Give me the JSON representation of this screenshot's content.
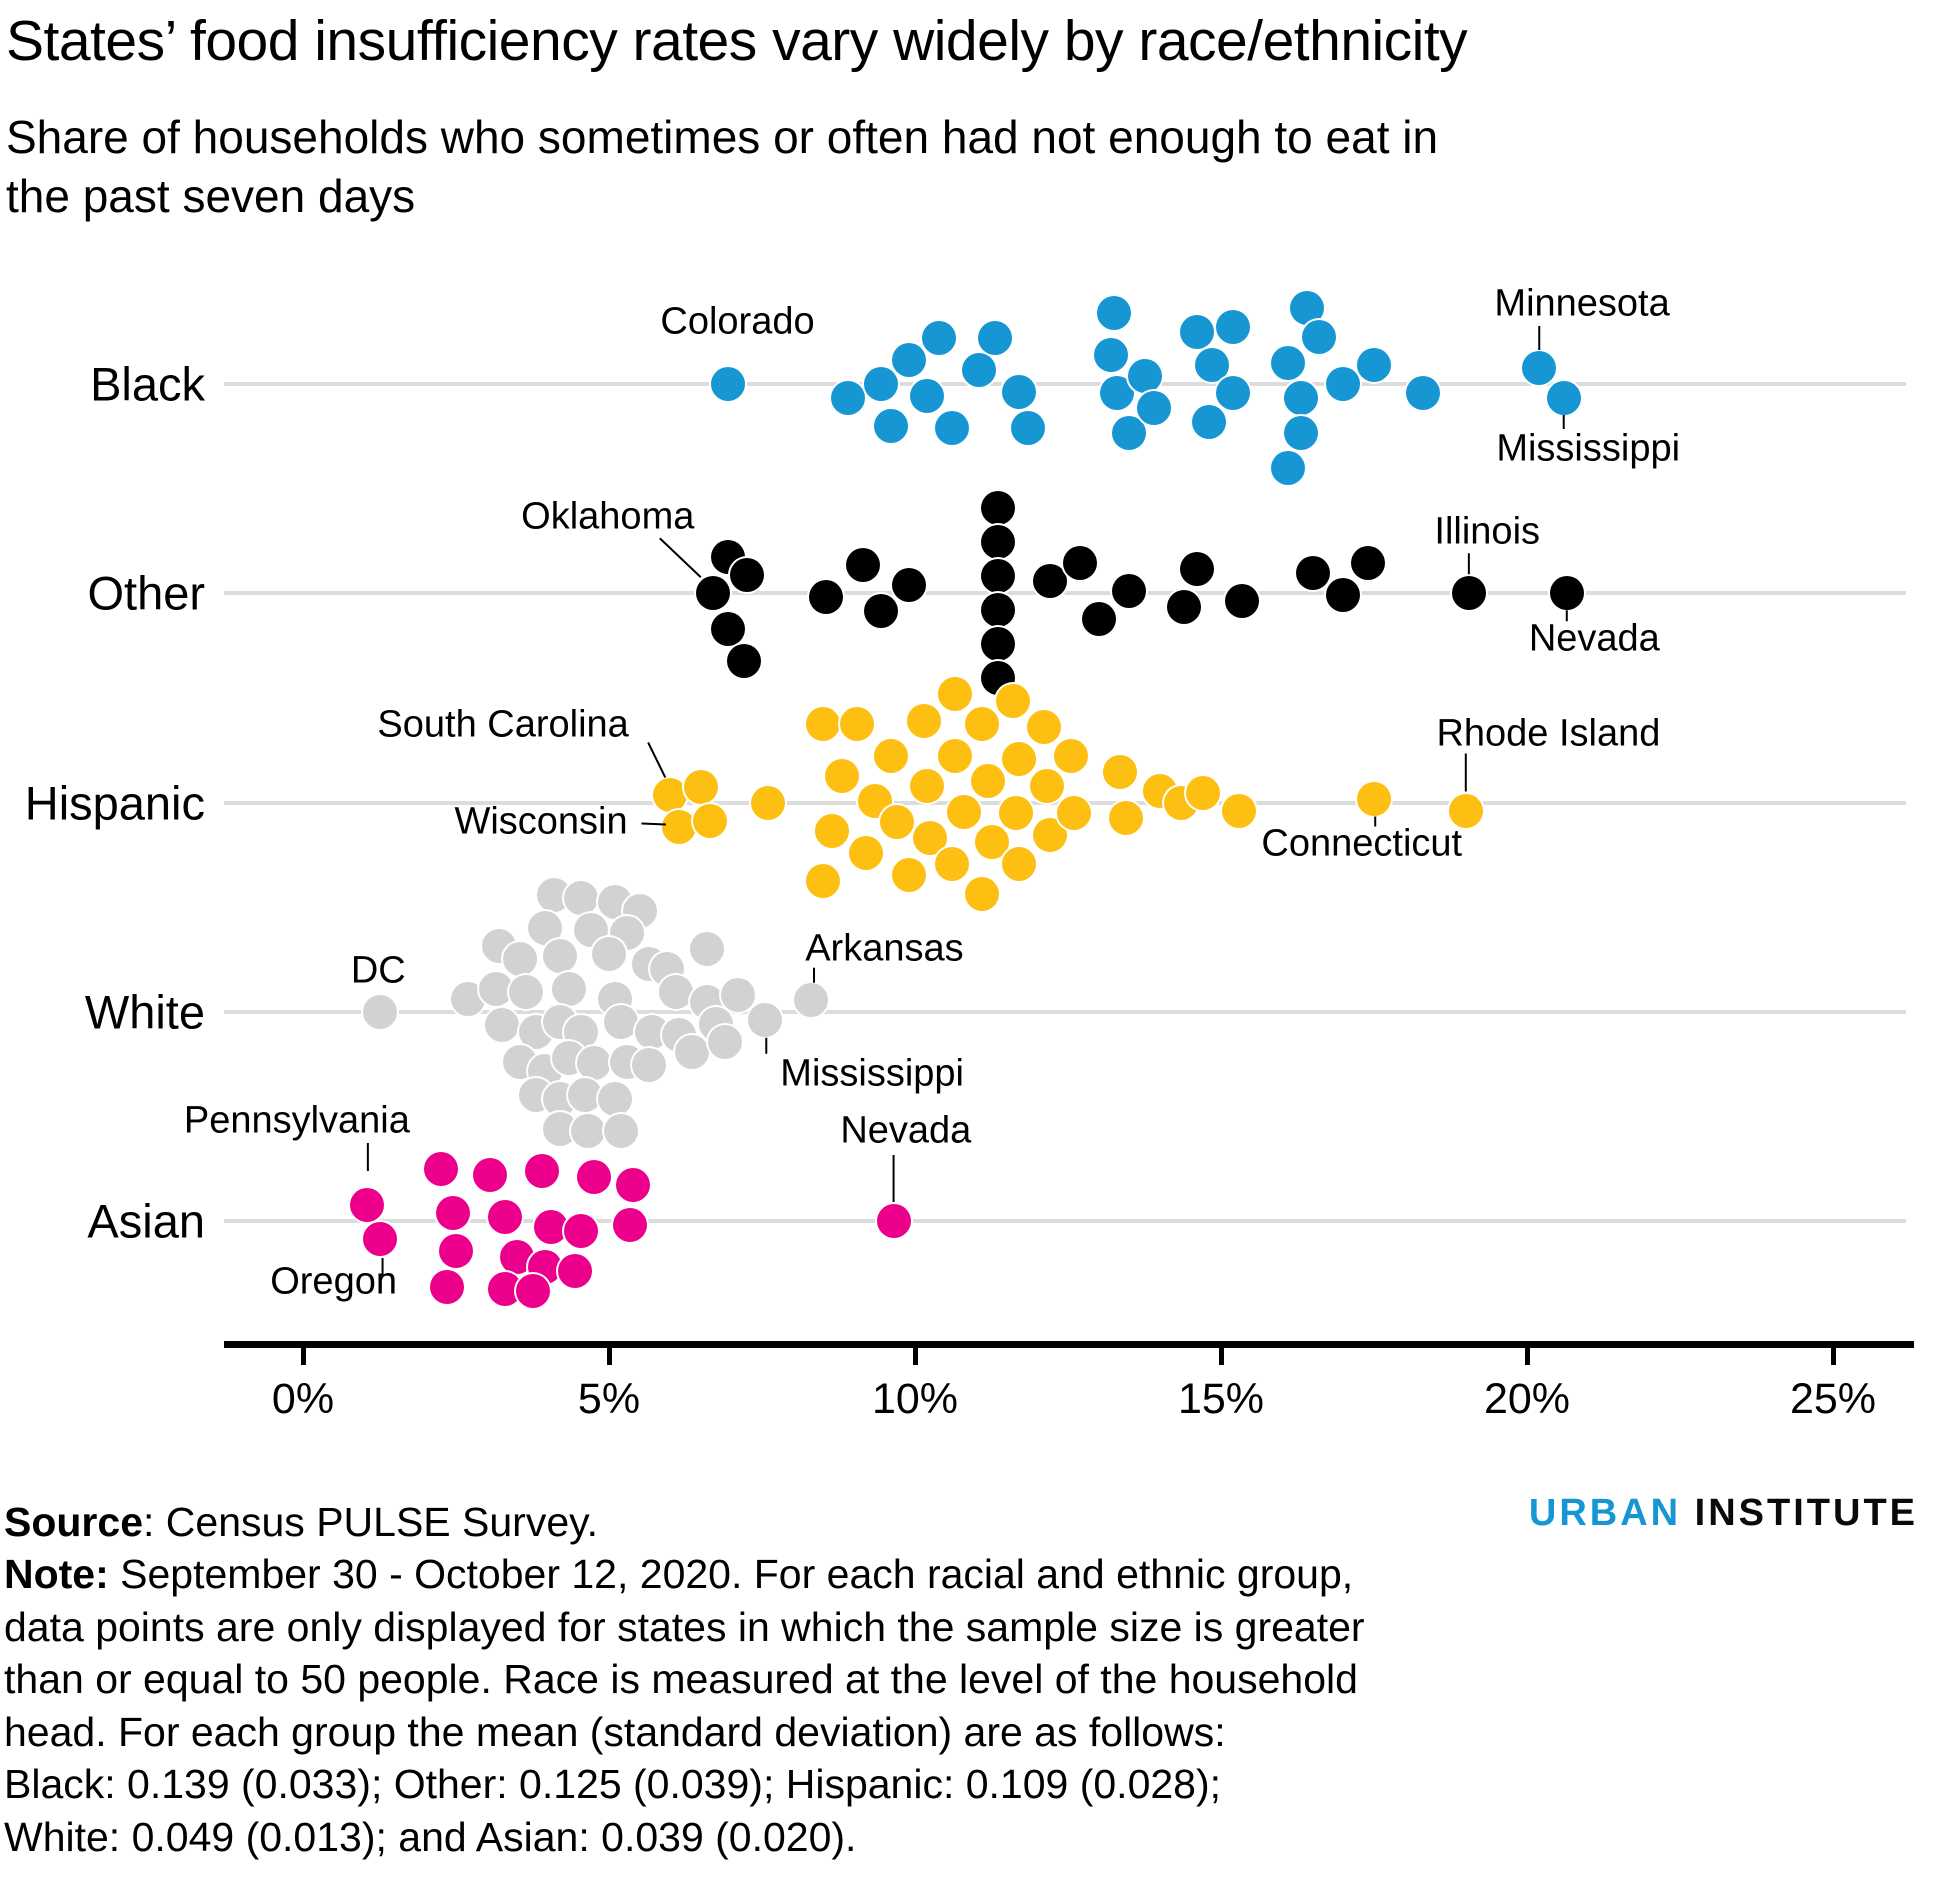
{
  "title": "States’ food insufficiency rates vary widely by race/ethnicity",
  "subtitle": "Share of households who sometimes or often had not enough to eat in the past seven days",
  "axis": {
    "tick_labels": [
      "0%",
      "5%",
      "10%",
      "15%",
      "20%",
      "25%"
    ],
    "tick_values": [
      0,
      5,
      10,
      15,
      20,
      25
    ]
  },
  "chart_data": {
    "type": "scatter",
    "subtype": "beeswarm-strip",
    "x_unit": "percent of households",
    "xlim": [
      0,
      25
    ],
    "grid": "horizontal-row-lines",
    "categories": [
      "Black",
      "Other",
      "Hispanic",
      "White",
      "Asian"
    ],
    "groups": [
      {
        "label": "Black",
        "color": "#1696d2",
        "mean": 0.139,
        "sd": 0.033,
        "dots": [
          [
            6.95,
            0
          ],
          [
            8.9,
            14
          ],
          [
            9.45,
            0
          ],
          [
            9.6,
            42
          ],
          [
            9.9,
            -24
          ],
          [
            10.2,
            12
          ],
          [
            10.4,
            -46
          ],
          [
            10.6,
            44
          ],
          [
            11.05,
            -14
          ],
          [
            11.3,
            -46
          ],
          [
            11.7,
            8
          ],
          [
            11.85,
            44
          ],
          [
            13.2,
            -29
          ],
          [
            13.25,
            -71
          ],
          [
            13.3,
            9
          ],
          [
            13.5,
            49
          ],
          [
            13.75,
            -8
          ],
          [
            13.9,
            24
          ],
          [
            14.6,
            -52
          ],
          [
            14.8,
            38
          ],
          [
            14.85,
            -19
          ],
          [
            15.2,
            -57
          ],
          [
            15.2,
            9
          ],
          [
            16.1,
            -21
          ],
          [
            16.1,
            84
          ],
          [
            16.3,
            14
          ],
          [
            16.3,
            49
          ],
          [
            16.4,
            -76
          ],
          [
            16.6,
            -47
          ],
          [
            17.0,
            0
          ],
          [
            17.5,
            -19
          ],
          [
            18.3,
            9
          ],
          [
            20.2,
            -16
          ],
          [
            20.6,
            14
          ]
        ],
        "annotations": [
          {
            "text": "Colorado",
            "x": 7.1,
            "dy": -62,
            "pointer": null
          },
          {
            "text": "Minnesota",
            "x": 20.9,
            "dy": -80,
            "pointer": [
              20.2,
              -58,
              20.2,
              -34
            ]
          },
          {
            "text": "Mississippi",
            "x": 21.0,
            "dy": 65,
            "pointer": [
              20.6,
              31,
              20.6,
              45
            ]
          }
        ]
      },
      {
        "label": "Other",
        "color": "#000000",
        "mean": 0.125,
        "sd": 0.039,
        "dots": [
          [
            6.7,
            0
          ],
          [
            6.95,
            -36
          ],
          [
            7.25,
            -18
          ],
          [
            6.95,
            36
          ],
          [
            7.2,
            68
          ],
          [
            8.55,
            4
          ],
          [
            9.15,
            -28
          ],
          [
            9.45,
            18
          ],
          [
            9.9,
            -8
          ],
          [
            11.35,
            -85
          ],
          [
            11.35,
            -51
          ],
          [
            11.35,
            -17
          ],
          [
            11.35,
            17
          ],
          [
            11.35,
            51
          ],
          [
            11.35,
            85
          ],
          [
            12.2,
            -12
          ],
          [
            12.7,
            -30
          ],
          [
            13.0,
            26
          ],
          [
            13.5,
            -2
          ],
          [
            14.4,
            14
          ],
          [
            14.6,
            -24
          ],
          [
            15.35,
            8
          ],
          [
            16.5,
            -20
          ],
          [
            17.0,
            2
          ],
          [
            17.4,
            -30
          ],
          [
            19.05,
            0
          ],
          [
            20.65,
            0
          ]
        ],
        "annotations": [
          {
            "text": "Oklahoma",
            "x": 4.98,
            "dy": -76,
            "pointer": [
              5.83,
              -55,
              6.5,
              -16
            ]
          },
          {
            "text": "Illinois",
            "x": 19.35,
            "dy": -61,
            "pointer": [
              19.05,
              -40,
              19.05,
              -19
            ]
          },
          {
            "text": "Nevada",
            "x": 21.1,
            "dy": 46,
            "pointer": [
              20.65,
              17,
              20.65,
              28
            ]
          }
        ]
      },
      {
        "label": "Hispanic",
        "color": "#fdbf11",
        "mean": 0.109,
        "sd": 0.028,
        "dots": [
          [
            6.0,
            -8
          ],
          [
            6.5,
            -16
          ],
          [
            6.15,
            24
          ],
          [
            6.65,
            18
          ],
          [
            7.6,
            0
          ],
          [
            8.5,
            -79
          ],
          [
            8.8,
            -27
          ],
          [
            8.65,
            28
          ],
          [
            8.5,
            78
          ],
          [
            9.05,
            -79
          ],
          [
            9.35,
            -2
          ],
          [
            9.2,
            50
          ],
          [
            9.6,
            -47
          ],
          [
            9.7,
            19
          ],
          [
            9.9,
            72
          ],
          [
            10.15,
            -82
          ],
          [
            10.2,
            -17
          ],
          [
            10.25,
            35
          ],
          [
            10.65,
            -109
          ],
          [
            10.65,
            -47
          ],
          [
            10.8,
            9
          ],
          [
            10.6,
            61
          ],
          [
            11.1,
            -79
          ],
          [
            11.2,
            -22
          ],
          [
            11.25,
            39
          ],
          [
            11.1,
            91
          ],
          [
            11.6,
            -102
          ],
          [
            11.7,
            -44
          ],
          [
            11.65,
            10
          ],
          [
            11.7,
            61
          ],
          [
            12.1,
            -76
          ],
          [
            12.15,
            -17
          ],
          [
            12.2,
            32
          ],
          [
            12.55,
            -47
          ],
          [
            12.6,
            10
          ],
          [
            13.35,
            -31
          ],
          [
            13.45,
            15
          ],
          [
            14.0,
            -12
          ],
          [
            14.35,
            0
          ],
          [
            14.7,
            -10
          ],
          [
            15.3,
            8
          ],
          [
            17.5,
            -4
          ],
          [
            19.0,
            8
          ]
        ],
        "annotations": [
          {
            "text": "South Carolina",
            "x": 3.27,
            "dy": -78,
            "pointer": [
              5.64,
              -60,
              5.92,
              -25
            ]
          },
          {
            "text": "Wisconsin",
            "x": 3.89,
            "dy": 19,
            "pointer": [
              5.53,
              21,
              5.93,
              22
            ]
          },
          {
            "text": "Connecticut",
            "x": 17.3,
            "dy": 41,
            "pointer": [
              17.52,
              14,
              17.52,
              24
            ]
          },
          {
            "text": "Rhode Island",
            "x": 20.35,
            "dy": -69,
            "pointer": [
              19.0,
              -49,
              19.0,
              -11
            ]
          }
        ]
      },
      {
        "label": "White",
        "color": "#d2d2d2",
        "mean": 0.049,
        "sd": 0.013,
        "dots": [
          [
            1.25,
            0
          ],
          [
            4.1,
            -117
          ],
          [
            4.55,
            -114
          ],
          [
            5.1,
            -110
          ],
          [
            5.5,
            -101
          ],
          [
            3.95,
            -84
          ],
          [
            4.7,
            -82
          ],
          [
            5.3,
            -79
          ],
          [
            3.2,
            -66
          ],
          [
            3.55,
            -53
          ],
          [
            4.2,
            -56
          ],
          [
            5.0,
            -58
          ],
          [
            5.65,
            -48
          ],
          [
            6.6,
            -63
          ],
          [
            5.95,
            -43
          ],
          [
            2.7,
            -13
          ],
          [
            3.15,
            -23
          ],
          [
            3.65,
            -20
          ],
          [
            4.35,
            -23
          ],
          [
            5.1,
            -13
          ],
          [
            6.1,
            -20
          ],
          [
            6.6,
            -10
          ],
          [
            7.1,
            -17
          ],
          [
            3.25,
            13
          ],
          [
            3.8,
            20
          ],
          [
            4.2,
            10
          ],
          [
            4.55,
            20
          ],
          [
            5.2,
            10
          ],
          [
            5.7,
            20
          ],
          [
            6.15,
            23
          ],
          [
            6.75,
            12
          ],
          [
            3.55,
            50
          ],
          [
            3.95,
            59
          ],
          [
            4.35,
            46
          ],
          [
            4.75,
            51
          ],
          [
            5.3,
            50
          ],
          [
            5.65,
            53
          ],
          [
            6.35,
            40
          ],
          [
            3.8,
            83
          ],
          [
            4.2,
            87
          ],
          [
            4.6,
            83
          ],
          [
            5.1,
            87
          ],
          [
            4.2,
            117
          ],
          [
            4.65,
            119
          ],
          [
            5.2,
            119
          ],
          [
            6.9,
            30
          ],
          [
            7.55,
            8
          ],
          [
            8.3,
            -12
          ]
        ],
        "annotations": [
          {
            "text": "DC",
            "x": 1.23,
            "dy": -41,
            "pointer": null
          },
          {
            "text": "Arkansas",
            "x": 9.5,
            "dy": -63,
            "pointer": [
              8.35,
              -44,
              8.35,
              -29
            ]
          },
          {
            "text": "Mississippi",
            "x": 9.3,
            "dy": 62,
            "pointer": [
              7.57,
              26,
              7.57,
              42
            ]
          }
        ]
      },
      {
        "label": "Asian",
        "color": "#ec008b",
        "mean": 0.039,
        "sd": 0.02,
        "dots": [
          [
            1.05,
            -16
          ],
          [
            1.25,
            18
          ],
          [
            2.25,
            -52
          ],
          [
            2.45,
            -8
          ],
          [
            2.5,
            30
          ],
          [
            2.35,
            66
          ],
          [
            3.05,
            -46
          ],
          [
            3.3,
            -4
          ],
          [
            3.5,
            36
          ],
          [
            3.3,
            68
          ],
          [
            3.9,
            -50
          ],
          [
            4.05,
            6
          ],
          [
            3.95,
            46
          ],
          [
            3.75,
            70
          ],
          [
            4.75,
            -44
          ],
          [
            4.55,
            10
          ],
          [
            4.45,
            50
          ],
          [
            5.4,
            -36
          ],
          [
            5.35,
            4
          ],
          [
            9.65,
            0
          ]
        ],
        "annotations": [
          {
            "text": "Pennsylvania",
            "x": -0.1,
            "dy": -100,
            "pointer": [
              1.06,
              -78,
              1.06,
              -50
            ]
          },
          {
            "text": "Oregon",
            "x": 0.5,
            "dy": 61,
            "pointer": [
              1.3,
              37,
              1.3,
              55
            ]
          },
          {
            "text": "Nevada",
            "x": 9.85,
            "dy": -90,
            "pointer": [
              9.65,
              -66,
              9.65,
              -19
            ]
          }
        ]
      }
    ]
  },
  "footer": {
    "source_bold": "Source",
    "source_rest": ": Census PULSE Survey.",
    "note_bold": "Note:",
    "note_lines": [
      " September 30 - October 12, 2020. For each racial and ethnic group,",
      "data points are only displayed for states in which the sample size is greater",
      "than or equal to 50 people. Race is measured at the level of the household",
      "head. For each group the mean (standard deviation) are as follows:",
      "Black: 0.139 (0.033); Other: 0.125 (0.039); Hispanic: 0.109 (0.028);",
      "White: 0.049 (0.013); and Asian: 0.039 (0.020)."
    ]
  },
  "logo": {
    "word1": "URBAN",
    "word2": "INSTITUTE",
    "word1_color": "#1696d2",
    "word2_color": "#0a0a0a"
  }
}
